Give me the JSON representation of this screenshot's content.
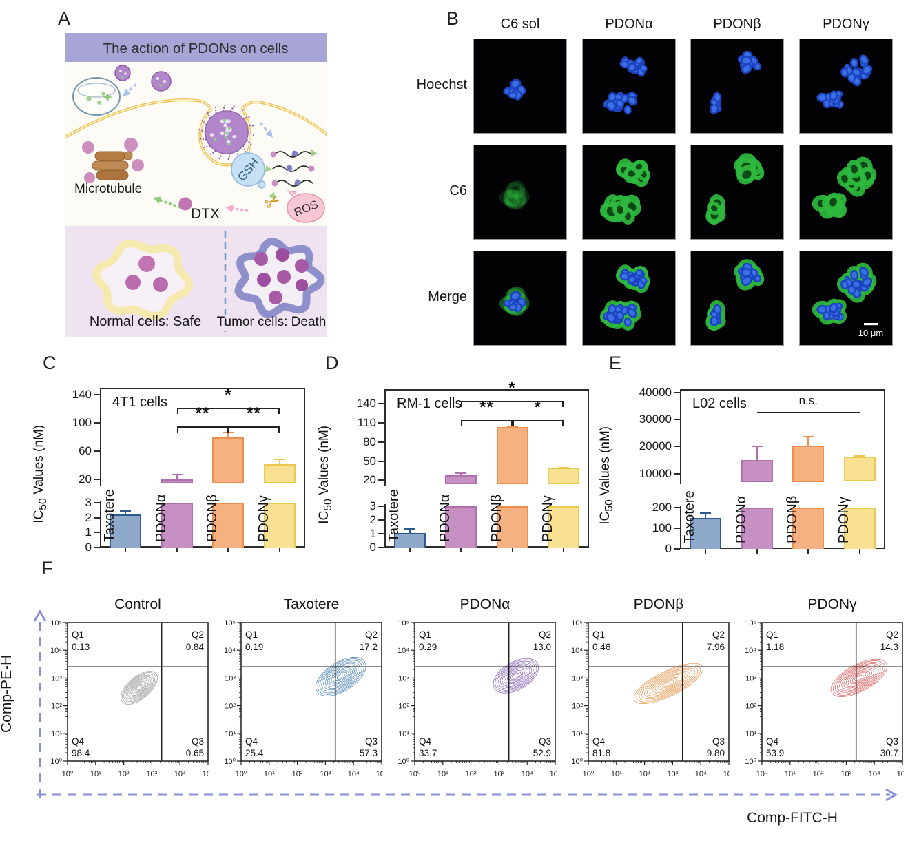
{
  "figure": {
    "panel_labels": {
      "a": "A",
      "b": "B",
      "c": "C",
      "d": "D",
      "e": "E",
      "f": "F"
    }
  },
  "panel_a": {
    "title": "The action of PDONs on cells",
    "microtubule_label": "Microtubule",
    "gsh_label": "GSH",
    "ros_label": "ROS",
    "dtx_label": "DTX",
    "normal_label": "Normal cells: Safe",
    "tumor_label": "Tumor cells: Death",
    "colors": {
      "header_bg": "#a7a4d6",
      "body_bg": "#fcfbf5",
      "bottom_bg": "#efe3f2",
      "membrane": "#edc24c",
      "microtubule": "#b57b45",
      "gsh_fill": "#c6e1f5",
      "ros_fill": "#f9c6d5",
      "normal_cell": "#f6e9ae",
      "tumor_cell": "#8e90cc",
      "nucleus": "#c173b2",
      "divider": "#6d9bc8"
    }
  },
  "panel_b": {
    "col_headers": [
      "C6 sol",
      "PDONα",
      "PDONβ",
      "PDONγ"
    ],
    "row_labels": [
      "Hoechst",
      "C6",
      "Merge"
    ],
    "scale_bar_label": "10 μm"
  },
  "chart_data": [
    {
      "id": "c",
      "type": "bar",
      "title": "4T1 cells",
      "ylabel_prefix": "IC",
      "ylabel_sub": "50",
      "ylabel_suffix": " Values (nM)",
      "categories": [
        "Taxotere",
        "PDONα",
        "PDONβ",
        "PDONγ"
      ],
      "values": [
        2.2,
        20,
        80,
        42
      ],
      "errors": [
        0.3,
        8,
        7,
        7
      ],
      "bar_fill": [
        "#8fa9cb",
        "#c690c2",
        "#f6b183",
        "#f8e193"
      ],
      "bar_edge": [
        "#2e5b8f",
        "#b06fae",
        "#ee8f4e",
        "#e9c94f"
      ],
      "axis": {
        "lower_range": [
          0,
          3
        ],
        "upper_range": [
          20,
          140
        ],
        "lower_ticks": [
          0,
          1,
          2,
          3
        ],
        "upper_ticks": [
          20,
          60,
          100,
          140
        ]
      },
      "significance": [
        {
          "pair": [
            "PDONα",
            "PDONγ"
          ],
          "label": "*"
        },
        {
          "pair": [
            "PDONα",
            "PDONβ"
          ],
          "label": "**"
        },
        {
          "pair": [
            "PDONβ",
            "PDONγ"
          ],
          "label": "**"
        }
      ]
    },
    {
      "id": "d",
      "type": "bar",
      "title": "RM-1 cells",
      "ylabel_prefix": "IC",
      "ylabel_sub": "50",
      "ylabel_suffix": " Values (nM)",
      "categories": [
        "Taxotere",
        "PDONα",
        "PDONβ",
        "PDONγ"
      ],
      "values": [
        1.05,
        28,
        103,
        40
      ],
      "errors": [
        0.35,
        4,
        2,
        1
      ],
      "bar_fill": [
        "#8fa9cb",
        "#c690c2",
        "#f6b183",
        "#f8e193"
      ],
      "bar_edge": [
        "#2e5b8f",
        "#b06fae",
        "#ee8f4e",
        "#e9c94f"
      ],
      "axis": {
        "lower_range": [
          0,
          3
        ],
        "upper_range": [
          20,
          140
        ],
        "lower_ticks": [
          0,
          1,
          2,
          3
        ],
        "upper_ticks": [
          20,
          50,
          80,
          110,
          140
        ]
      },
      "significance": [
        {
          "pair": [
            "PDONα",
            "PDONγ"
          ],
          "label": "*"
        },
        {
          "pair": [
            "PDONα",
            "PDONβ"
          ],
          "label": "**"
        },
        {
          "pair": [
            "PDONβ",
            "PDONγ"
          ],
          "label": "*"
        }
      ]
    },
    {
      "id": "e",
      "type": "bar",
      "title": "L02 cells",
      "ylabel_prefix": "IC",
      "ylabel_sub": "50",
      "ylabel_suffix": " Values (nM)",
      "categories": [
        "Taxotere",
        "PDONα",
        "PDONβ",
        "PDONγ"
      ],
      "values": [
        150,
        15000,
        20300,
        16300
      ],
      "errors": [
        25,
        5400,
        3600,
        500
      ],
      "bar_fill": [
        "#8fa9cb",
        "#c690c2",
        "#f6b183",
        "#f8e193"
      ],
      "bar_edge": [
        "#2e5b8f",
        "#b06fae",
        "#ee8f4e",
        "#e9c94f"
      ],
      "axis": {
        "lower_range": [
          0,
          200
        ],
        "upper_range": [
          10000,
          40000
        ],
        "lower_ticks": [
          0,
          100,
          200
        ],
        "upper_ticks": [
          10000,
          20000,
          30000,
          40000
        ]
      },
      "significance": [
        {
          "pair": [
            "PDONα",
            "PDONγ"
          ],
          "label": "n.s."
        }
      ]
    },
    {
      "id": "f",
      "type": "flow_contour",
      "xlabel": "Comp-FITC-H",
      "ylabel": "Comp-PE-H",
      "tick_labels": [
        "10⁰",
        "10¹",
        "10²",
        "10³",
        "10⁴",
        "10⁵"
      ],
      "quadrant_gate": {
        "x_decade": 3.35,
        "y_decade": 3.4
      },
      "plots": [
        {
          "title": "Control",
          "color": "#9b9b9b",
          "quadrants": {
            "Q1": "0.13",
            "Q2": "0.84",
            "Q3": "0.65",
            "Q4": "98.4"
          },
          "population": {
            "cx_decade": 2.55,
            "cy_decade": 2.65,
            "r_major": 0.78,
            "r_minor": 0.4,
            "tilt_deg": -40
          }
        },
        {
          "title": "Taxotere",
          "color": "#4c83b4",
          "quadrants": {
            "Q1": "0.19",
            "Q2": "17.2",
            "Q3": "57.3",
            "Q4": "25.4"
          },
          "population": {
            "cx_decade": 3.55,
            "cy_decade": 3.05,
            "r_major": 1.0,
            "r_minor": 0.52,
            "tilt_deg": -32
          }
        },
        {
          "title": "PDONα",
          "color": "#8a66b6",
          "quadrants": {
            "Q1": "0.29",
            "Q2": "13.0",
            "Q3": "52.9",
            "Q4": "33.7"
          },
          "population": {
            "cx_decade": 3.6,
            "cy_decade": 3.08,
            "r_major": 0.88,
            "r_minor": 0.5,
            "tilt_deg": -30
          }
        },
        {
          "title": "PDONβ",
          "color": "#e59a54",
          "quadrants": {
            "Q1": "0.46",
            "Q2": "7.96",
            "Q3": "9.80",
            "Q4": "81.8"
          },
          "population": {
            "cx_decade": 2.85,
            "cy_decade": 2.8,
            "r_major": 1.35,
            "r_minor": 0.45,
            "tilt_deg": -26
          }
        },
        {
          "title": "PDONγ",
          "color": "#d95f5f",
          "quadrants": {
            "Q1": "1.18",
            "Q2": "14.3",
            "Q3": "30.7",
            "Q4": "53.9"
          },
          "population": {
            "cx_decade": 3.45,
            "cy_decade": 3.0,
            "r_major": 1.1,
            "r_minor": 0.48,
            "tilt_deg": -28
          }
        }
      ]
    }
  ]
}
